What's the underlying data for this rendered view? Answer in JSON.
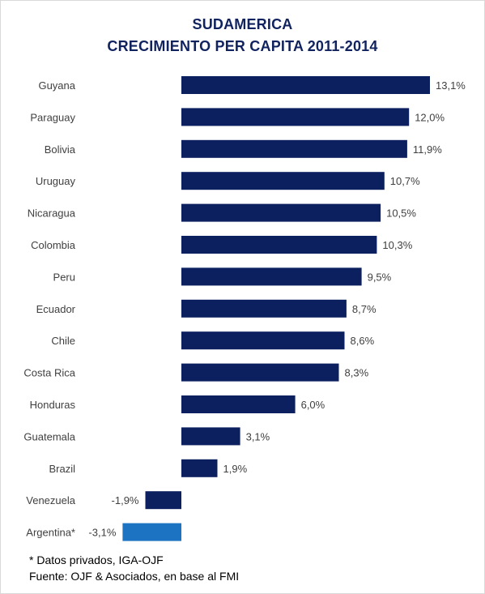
{
  "chart_data": {
    "type": "bar",
    "orientation": "horizontal",
    "title": [
      "SUDAMERICA",
      "CRECIMIENTO PER CAPITA 2011-2014"
    ],
    "categories": [
      "Guyana",
      "Paraguay",
      "Bolivia",
      "Uruguay",
      "Nicaragua",
      "Colombia",
      "Peru",
      "Ecuador",
      "Chile",
      "Costa Rica",
      "Honduras",
      "Guatemala",
      "Brazil",
      "Venezuela",
      "Argentina*"
    ],
    "values": [
      13.1,
      12.0,
      11.9,
      10.7,
      10.5,
      10.3,
      9.5,
      8.7,
      8.6,
      8.3,
      6.0,
      3.1,
      1.9,
      -1.9,
      -3.1
    ],
    "value_labels": [
      "13,1%",
      "12,0%",
      "11,9%",
      "10,7%",
      "10,5%",
      "10,3%",
      "9,5%",
      "8,7%",
      "8,6%",
      "8,3%",
      "6,0%",
      "3,1%",
      "1,9%",
      "-1,9%",
      "-3,1%"
    ],
    "bar_colors": [
      "#0c1f5e",
      "#0c1f5e",
      "#0c1f5e",
      "#0c1f5e",
      "#0c1f5e",
      "#0c1f5e",
      "#0c1f5e",
      "#0c1f5e",
      "#0c1f5e",
      "#0c1f5e",
      "#0c1f5e",
      "#0c1f5e",
      "#0c1f5e",
      "#0c1f5e",
      "#1c73c2"
    ],
    "xlim": [
      -3.1,
      13.1
    ],
    "grid": false,
    "legend": "none",
    "xlabel": "",
    "ylabel": ""
  },
  "colors": {
    "title": "#10235f",
    "bar": "#0c1f5e",
    "highlight_bar": "#1c73c2"
  },
  "footnotes": [
    "* Datos privados, IGA-OJF",
    "Fuente: OJF & Asociados, en base al FMI"
  ]
}
